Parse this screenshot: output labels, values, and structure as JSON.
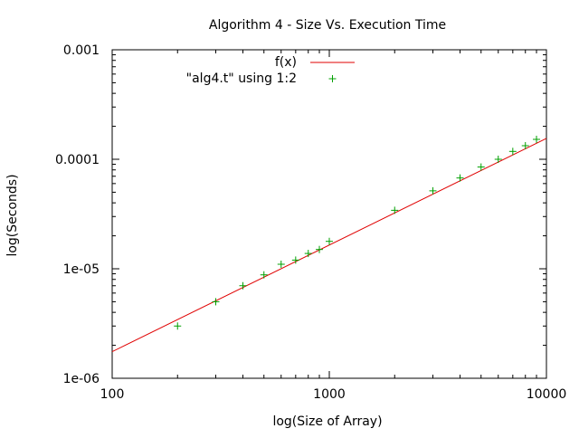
{
  "chart_data": {
    "type": "scatter",
    "title": "Algorithm 4 - Size Vs. Execution Time",
    "xlabel": "log(Size of Array)",
    "ylabel": "log(Seconds)",
    "xscale": "log",
    "yscale": "log",
    "xlim": [
      100,
      10000
    ],
    "ylim": [
      1e-06,
      0.001
    ],
    "x_ticks": [
      {
        "value": 100,
        "label": "100"
      },
      {
        "value": 1000,
        "label": "1000"
      },
      {
        "value": 10000,
        "label": "10000"
      }
    ],
    "y_ticks": [
      {
        "value": 1e-06,
        "label": "1e-06"
      },
      {
        "value": 1e-05,
        "label": "1e-05"
      },
      {
        "value": 0.0001,
        "label": "0.0001"
      },
      {
        "value": 0.001,
        "label": "0.001"
      }
    ],
    "grid": false,
    "legend_position": "top",
    "series": [
      {
        "name": "f(x)",
        "kind": "line",
        "color": "#e00000",
        "x": [
          100,
          10000
        ],
        "y": [
          1.75e-06,
          0.000155
        ]
      },
      {
        "name": "\"alg4.t\" using 1:2",
        "kind": "points",
        "marker": "+",
        "color": "#00a000",
        "x": [
          200,
          300,
          400,
          500,
          600,
          700,
          800,
          900,
          1000,
          2000,
          3000,
          4000,
          5000,
          6000,
          7000,
          8000,
          9000
        ],
        "y": [
          3e-06,
          5e-06,
          7e-06,
          8.8e-06,
          1.1e-05,
          1.2e-05,
          1.38e-05,
          1.5e-05,
          1.78e-05,
          3.42e-05,
          5.15e-05,
          6.75e-05,
          8.5e-05,
          0.0001,
          0.000118,
          0.000133,
          0.000152
        ]
      }
    ]
  }
}
